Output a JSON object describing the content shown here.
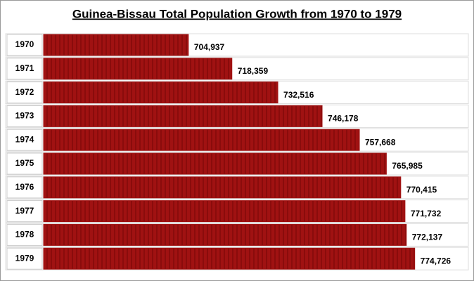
{
  "chart_data": {
    "type": "bar",
    "orientation": "horizontal",
    "title": "Guinea-Bissau Total Population Growth from 1970 to 1979",
    "categories": [
      "1970",
      "1971",
      "1972",
      "1973",
      "1974",
      "1975",
      "1976",
      "1977",
      "1978",
      "1979"
    ],
    "values": [
      704937,
      718359,
      732516,
      746178,
      757668,
      765985,
      770415,
      771732,
      772137,
      774726
    ],
    "value_labels": [
      "704,937",
      "718,359",
      "732,516",
      "746,178",
      "757,668",
      "765,985",
      "770,415",
      "771,732",
      "772,137",
      "774,726"
    ],
    "color": "#a01212",
    "xlim": [
      660300,
      780000
    ]
  }
}
